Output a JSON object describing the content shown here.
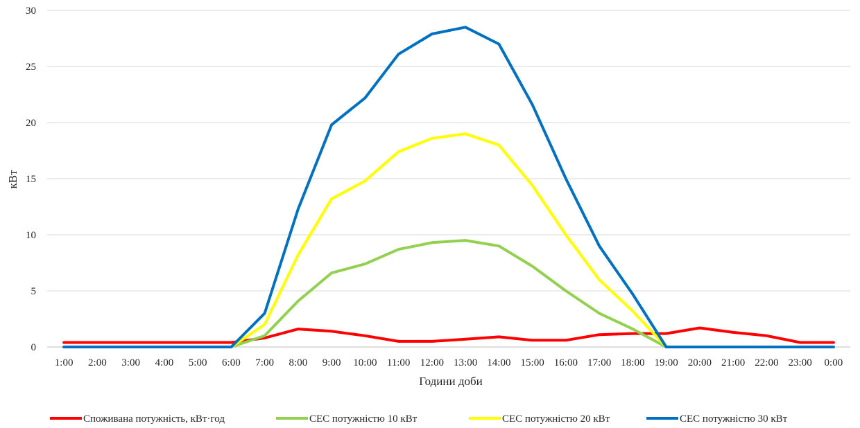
{
  "chart_data": {
    "type": "line",
    "title": "",
    "xlabel": "Години доби",
    "ylabel": "кВт",
    "ylim": [
      0,
      30
    ],
    "yticks": [
      "0",
      "5",
      "10",
      "15",
      "20",
      "25",
      "30"
    ],
    "grid": true,
    "legend_position": "bottom",
    "categories": [
      "1:00",
      "2:00",
      "3:00",
      "4:00",
      "5:00",
      "6:00",
      "7:00",
      "8:00",
      "9:00",
      "10:00",
      "11:00",
      "12:00",
      "13:00",
      "14:00",
      "15:00",
      "16:00",
      "17:00",
      "18:00",
      "19:00",
      "20:00",
      "21:00",
      "22:00",
      "23:00",
      "0:00"
    ],
    "series": [
      {
        "name": "Споживана потужність, кВт·год",
        "color": "#ff0000",
        "values": [
          0.4,
          0.4,
          0.4,
          0.4,
          0.4,
          0.4,
          0.8,
          1.6,
          1.4,
          1.0,
          0.5,
          0.5,
          0.7,
          0.9,
          0.6,
          0.6,
          1.1,
          1.2,
          1.2,
          1.7,
          1.3,
          1.0,
          0.4,
          0.4
        ]
      },
      {
        "name": "СЕС потужністю 10 кВт",
        "color": "#92d050",
        "values": [
          0,
          0,
          0,
          0,
          0,
          0,
          1.0,
          4.1,
          6.6,
          7.4,
          8.7,
          9.3,
          9.5,
          9.0,
          7.2,
          5.0,
          3.0,
          1.6,
          0,
          0,
          0,
          0,
          0,
          0
        ]
      },
      {
        "name": "СЕС потужністю 20 кВт",
        "color": "#ffff00",
        "values": [
          0,
          0,
          0,
          0,
          0,
          0,
          2.0,
          8.2,
          13.2,
          14.8,
          17.4,
          18.6,
          19.0,
          18.0,
          14.4,
          10.0,
          6.0,
          3.2,
          0,
          0,
          0,
          0,
          0,
          0
        ]
      },
      {
        "name": "СЕС потужністю 30 кВт",
        "color": "#0070c0",
        "values": [
          0,
          0,
          0,
          0,
          0,
          0,
          3.0,
          12.3,
          19.8,
          22.2,
          26.1,
          27.9,
          28.5,
          27.0,
          21.6,
          15.0,
          9.0,
          4.7,
          0,
          0,
          0,
          0,
          0,
          0
        ]
      }
    ]
  }
}
